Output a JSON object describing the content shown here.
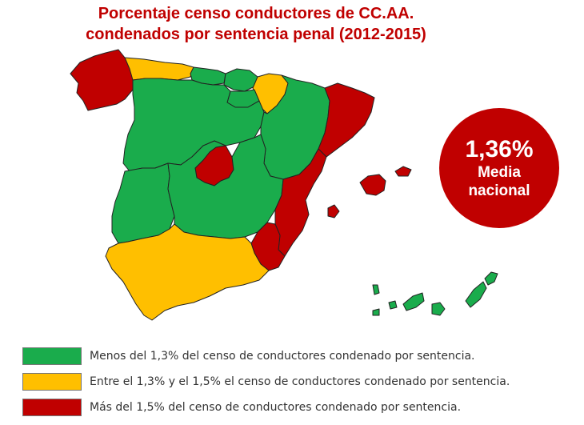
{
  "title": {
    "line1": "Porcentaje censo conductores de CC.AA.",
    "line2": "condenados por sentencia penal (2012-2015)"
  },
  "national_average": {
    "value": "1,36%",
    "label_line1": "Media",
    "label_line2": "nacional"
  },
  "colors": {
    "green": "#1aac4c",
    "yellow": "#ffbf00",
    "red": "#c00000",
    "title": "#c00000"
  },
  "legend": [
    {
      "color": "#1aac4c",
      "label": "Menos del 1,3% del censo de conductores condenado por sentencia."
    },
    {
      "color": "#ffbf00",
      "label": "Entre el 1,3% y el 1,5% el censo de conductores condenado por sentencia."
    },
    {
      "color": "#c00000",
      "label": "Más del 1,5% del censo de conductores condenado por sentencia."
    }
  ],
  "regions": [
    {
      "id": "galicia",
      "category": "red"
    },
    {
      "id": "asturias",
      "category": "yellow"
    },
    {
      "id": "cantabria",
      "category": "green"
    },
    {
      "id": "pais-vasco",
      "category": "green"
    },
    {
      "id": "navarra",
      "category": "yellow"
    },
    {
      "id": "la-rioja",
      "category": "green"
    },
    {
      "id": "castilla-y-leon",
      "category": "green"
    },
    {
      "id": "aragon",
      "category": "green"
    },
    {
      "id": "cataluna",
      "category": "red"
    },
    {
      "id": "madrid",
      "category": "red"
    },
    {
      "id": "extremadura",
      "category": "green"
    },
    {
      "id": "castilla-la-mancha",
      "category": "green"
    },
    {
      "id": "comunidad-valenciana",
      "category": "red"
    },
    {
      "id": "murcia",
      "category": "red"
    },
    {
      "id": "andalucia",
      "category": "yellow"
    },
    {
      "id": "baleares",
      "category": "red"
    },
    {
      "id": "canarias",
      "category": "green"
    }
  ]
}
